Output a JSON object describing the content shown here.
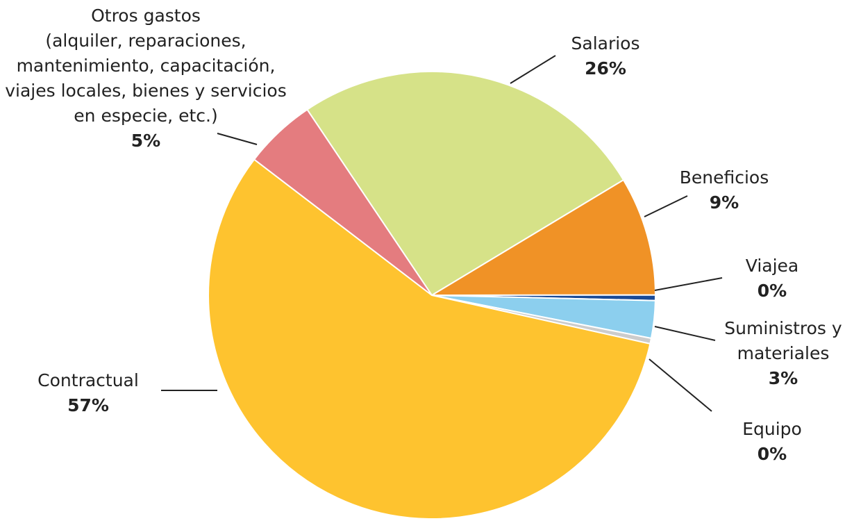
{
  "chart_data": {
    "type": "pie",
    "categories": [
      "Salarios",
      "Beneficios",
      "Viajea",
      "Suministros y\nmateriales",
      "Equipo",
      "Contractual",
      "Otros gastos\n(alquiler, reparaciones,\nmantenimiento, capacitación,\nviajes locales, bienes y servicios\nen especie, etc.)"
    ],
    "values": [
      25.8,
      8.6,
      0.4,
      2.7,
      0.4,
      56.9,
      5.2
    ],
    "value_labels": [
      "26%",
      "9%",
      "0%",
      "3%",
      "0%",
      "57%",
      "5%"
    ],
    "colors": [
      "#d6e288",
      "#f09226",
      "#1a4a96",
      "#8ccfee",
      "#cccccc",
      "#fec32f",
      "#e47c7f"
    ]
  }
}
